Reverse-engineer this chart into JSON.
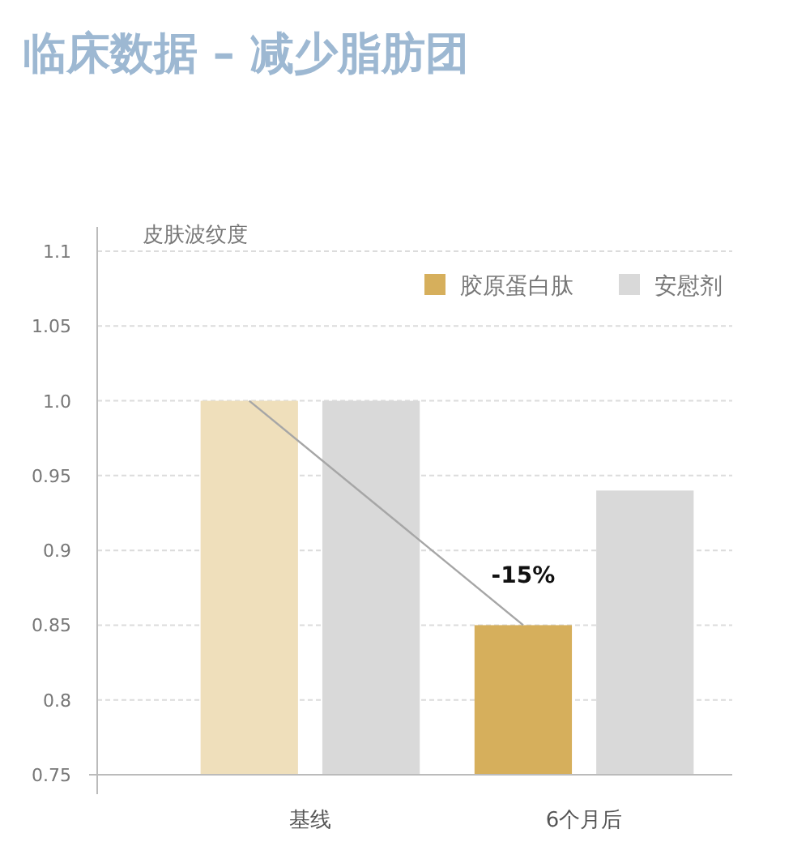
{
  "chart_data": {
    "type": "bar",
    "title": "临床数据 – 减少脂肪团",
    "ylabel": "皮肤波纹度",
    "categories": [
      "基线",
      "6个月后"
    ],
    "series": [
      {
        "name": "胶原蛋白肽",
        "color": "#d6af5c",
        "colors": [
          "#efdfbb",
          "#d6af5c"
        ],
        "values": [
          1.0,
          0.85
        ]
      },
      {
        "name": "安慰剂",
        "color": "#d9d9d9",
        "values": [
          1.0,
          0.94
        ]
      },
      {
        "type": "line",
        "color": "#a6a6a6",
        "values": [
          1.0,
          0.85
        ]
      }
    ],
    "annotations": [
      "-15%"
    ],
    "ylim": [
      0.75,
      1.1
    ],
    "yticks": [
      0.75,
      0.8,
      0.85,
      0.9,
      0.95,
      {
        "value": 1.0,
        "label": "1.0"
      },
      1.05,
      1.1
    ],
    "grid": "y",
    "legend": "top right"
  }
}
